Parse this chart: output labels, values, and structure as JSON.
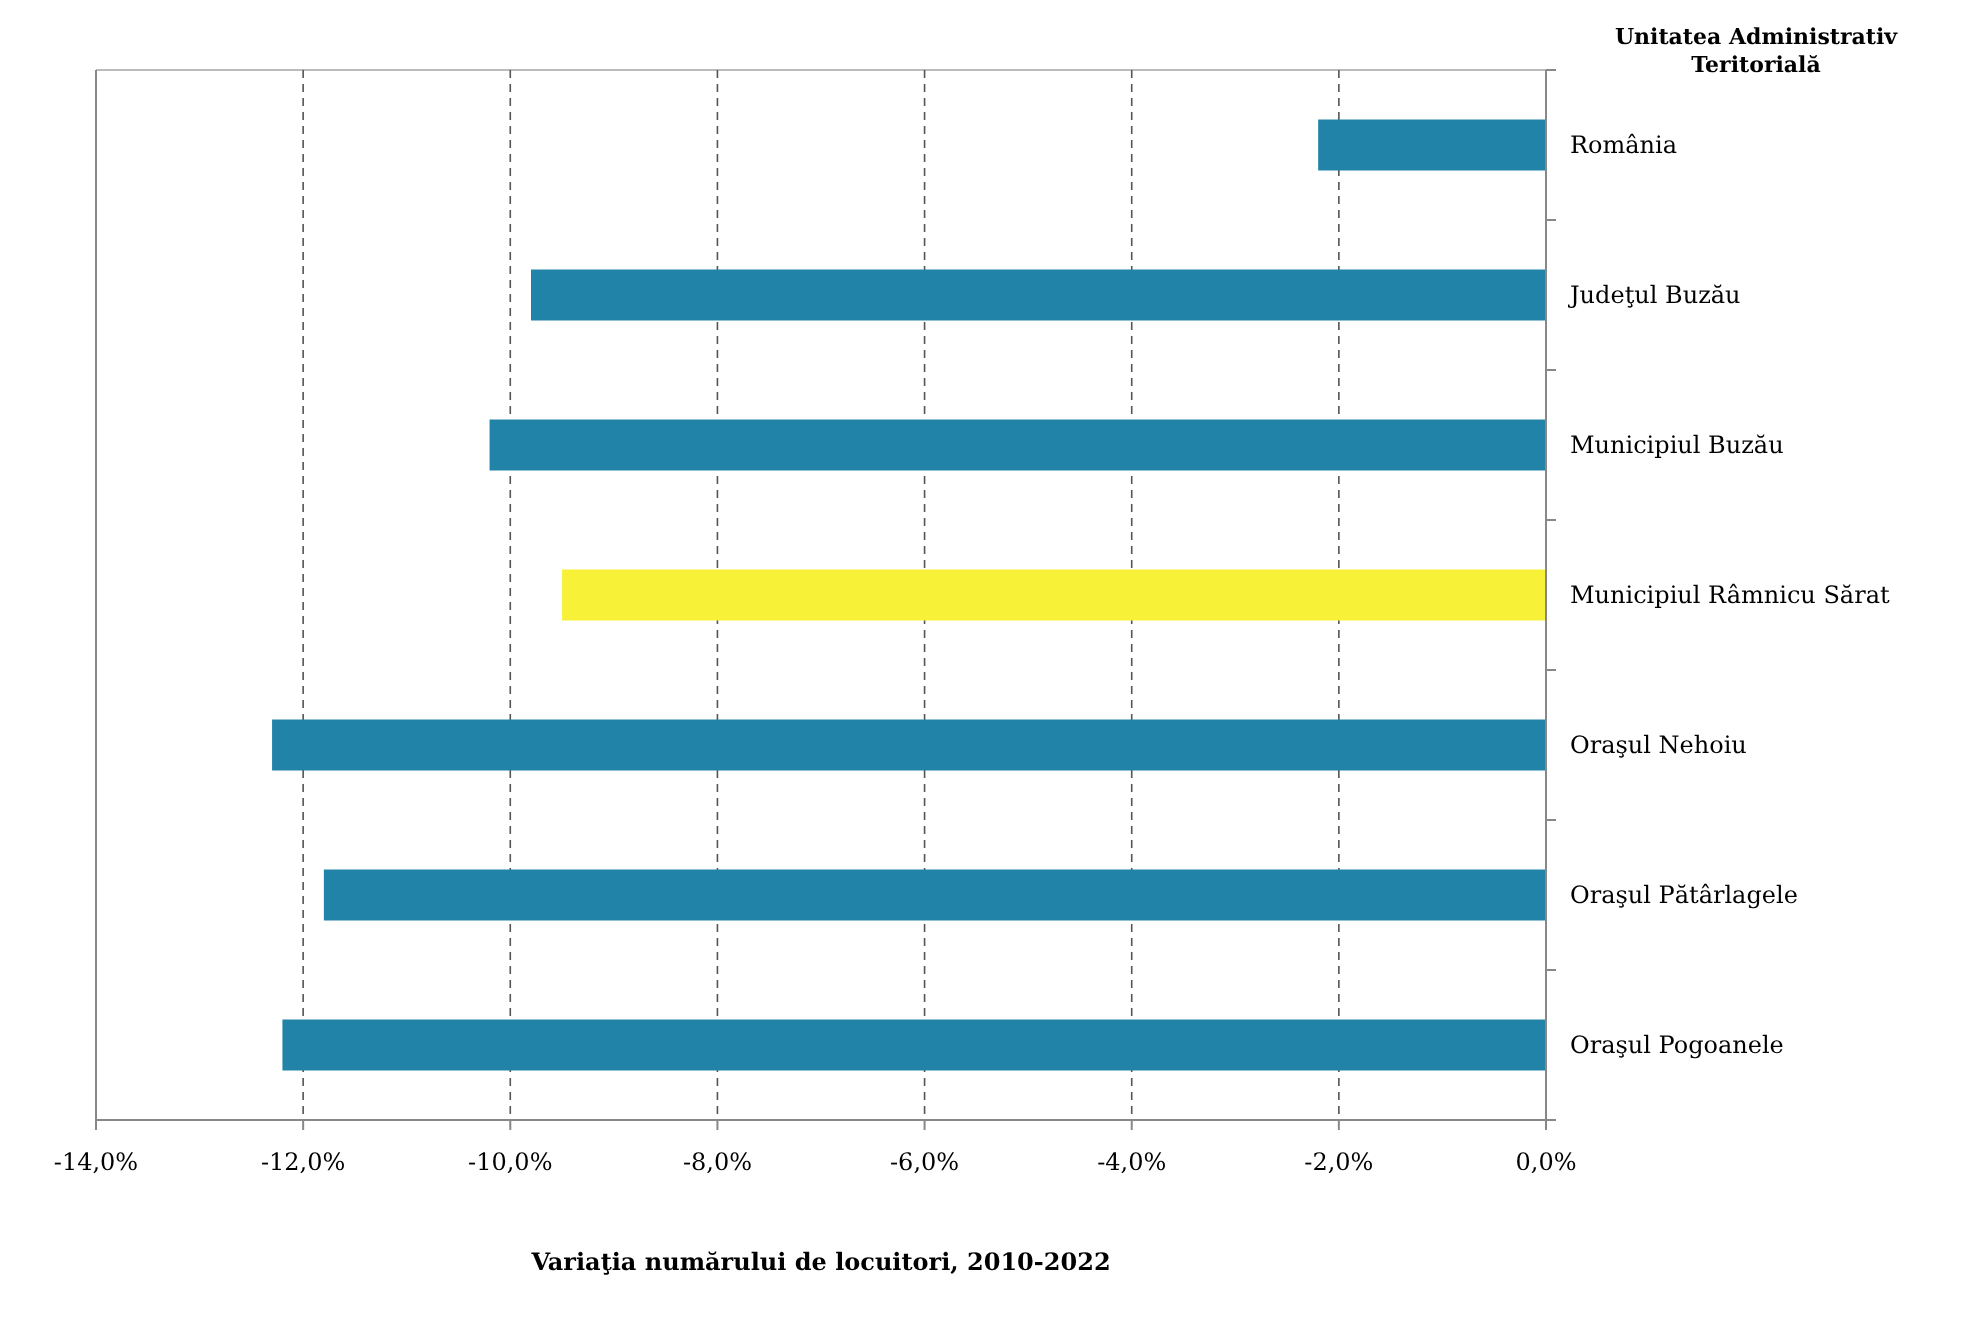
{
  "chart_data": {
    "type": "bar",
    "orientation": "horizontal",
    "xlabel": "Variaţia numărului de locuitori, 2010-2022",
    "ylabel": "Unitatea Administrativ Teritorială",
    "categories": [
      "România",
      "Judeţul Buzău",
      "Municipiul Buzău",
      "Municipiul Râmnicu Sărat",
      "Oraşul Nehoiu",
      "Oraşul Pătârlagele",
      "Oraşul Pogoanele"
    ],
    "values": [
      -2.2,
      -9.8,
      -10.2,
      -9.5,
      -12.3,
      -11.8,
      -12.2
    ],
    "colors": [
      "#2183a8",
      "#2183a8",
      "#2183a8",
      "#f7f238",
      "#2183a8",
      "#2183a8",
      "#2183a8"
    ],
    "xlim": [
      -14,
      0
    ],
    "xticks": [
      {
        "value": -14,
        "label": "-14,0%"
      },
      {
        "value": -12,
        "label": "-12,0%"
      },
      {
        "value": -10,
        "label": "-10,0%"
      },
      {
        "value": -8,
        "label": "-8,0%"
      },
      {
        "value": -6,
        "label": "-6,0%"
      },
      {
        "value": -4,
        "label": "-4,0%"
      },
      {
        "value": -2,
        "label": "-2,0%"
      },
      {
        "value": 0,
        "label": "0,0%"
      }
    ],
    "grid": "x"
  }
}
